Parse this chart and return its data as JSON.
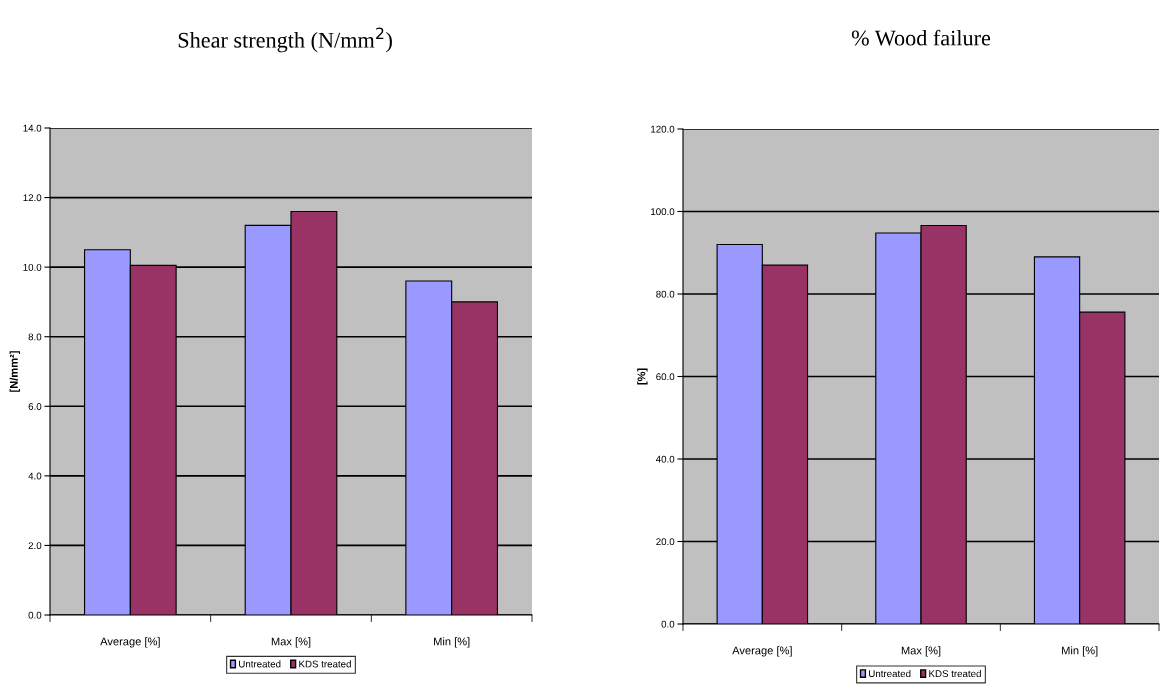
{
  "chart_data": [
    {
      "type": "bar",
      "title": "Shear strength (N/mm$^{2}$)",
      "ylabel": "[N/mm²]",
      "categories": [
        "Average [%]",
        "Max [%]",
        "Min [%]"
      ],
      "series": [
        {
          "name": "Untreated",
          "color": "#9999ff",
          "values": [
            10.5,
            11.2,
            9.6
          ]
        },
        {
          "name": "KDS treated",
          "color": "#993366",
          "values": [
            10.05,
            11.6,
            9.0
          ]
        }
      ],
      "ylim": [
        0,
        14
      ],
      "yticks": [
        {
          "value": 0,
          "label": "0.0"
        },
        {
          "value": 2,
          "label": "2.0"
        },
        {
          "value": 4,
          "label": "4.0"
        },
        {
          "value": 6,
          "label": "6.0"
        },
        {
          "value": 8,
          "label": "8.0"
        },
        {
          "value": 10,
          "label": "10.0"
        },
        {
          "value": 12,
          "label": "12.0"
        },
        {
          "value": 14,
          "label": "14.0"
        }
      ],
      "grid": "y",
      "legend": "bottom"
    },
    {
      "type": "bar",
      "title": "% Wood failure",
      "ylabel": "[%]",
      "categories": [
        "Average [%]",
        "Max [%]",
        "Min [%]"
      ],
      "series": [
        {
          "name": "Untreated",
          "color": "#9999ff",
          "values": [
            92.0,
            94.8,
            89.0
          ]
        },
        {
          "name": "KDS treated",
          "color": "#993366",
          "values": [
            87.0,
            96.6,
            75.6
          ]
        }
      ],
      "ylim": [
        0,
        120
      ],
      "yticks": [
        {
          "value": 0,
          "label": "0.0"
        },
        {
          "value": 20,
          "label": "20.0"
        },
        {
          "value": 40,
          "label": "40.0"
        },
        {
          "value": 60,
          "label": "60.0"
        },
        {
          "value": 80,
          "label": "80.0"
        },
        {
          "value": 100,
          "label": "100.0"
        },
        {
          "value": 120,
          "label": "120.0"
        }
      ],
      "grid": "y",
      "legend": "bottom"
    }
  ]
}
